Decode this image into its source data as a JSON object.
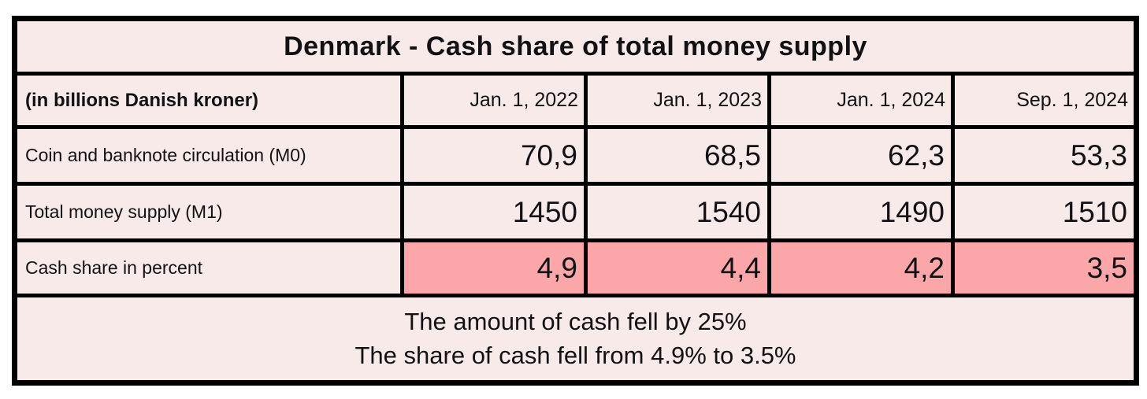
{
  "theme": {
    "light_bg": "#f9eaea",
    "data_bg": "#fcd8d8",
    "highlight_bg": "#fba6a8",
    "border": "#000000",
    "text": "#121216"
  },
  "table": {
    "title": "Denmark - Cash share of total money supply",
    "header": {
      "label": "(in billions Danish kroner)",
      "columns": [
        "Jan. 1, 2022",
        "Jan. 1, 2023",
        "Jan. 1, 2024",
        "Sep. 1, 2024"
      ]
    },
    "rows": [
      {
        "label": "Coin and banknote circulation (M0)",
        "values": [
          "70,9",
          "68,5",
          "62,3",
          "53,3"
        ]
      },
      {
        "label": "Total money supply (M1)",
        "values": [
          "1450",
          "1540",
          "1490",
          "1510"
        ]
      },
      {
        "label": "Cash share in percent",
        "values": [
          "4,9",
          "4,4",
          "4,2",
          "3,5"
        ]
      }
    ],
    "footer": [
      "The amount of cash fell by 25%",
      "The share of cash fell from 4.9% to 3.5%"
    ]
  },
  "chart_data": {
    "type": "table",
    "title": "Denmark - Cash share of total money supply",
    "unit_note": "(in billions Danish kroner)",
    "columns": [
      "Jan. 1, 2022",
      "Jan. 1, 2023",
      "Jan. 1, 2024",
      "Sep. 1, 2024"
    ],
    "series": [
      {
        "name": "Coin and banknote circulation (M0)",
        "values": [
          70.9,
          68.5,
          62.3,
          53.3
        ]
      },
      {
        "name": "Total money supply (M1)",
        "values": [
          1450,
          1540,
          1490,
          1510
        ]
      },
      {
        "name": "Cash share in percent",
        "values": [
          4.9,
          4.4,
          4.2,
          3.5
        ]
      }
    ],
    "annotations": [
      "The amount of cash fell by 25%",
      "The share of cash fell from 4.9% to 3.5%"
    ]
  }
}
